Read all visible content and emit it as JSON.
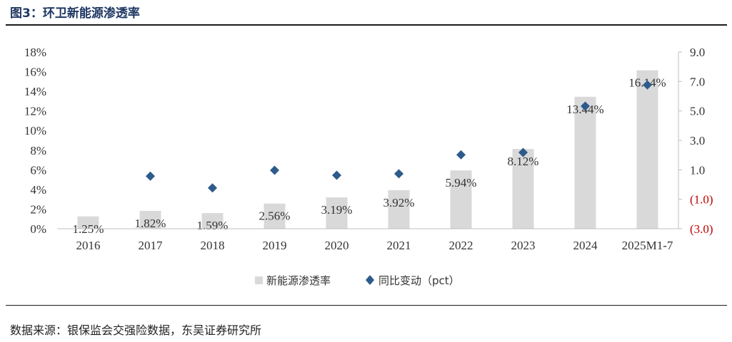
{
  "header": {
    "title": "图3：环卫新能源渗透率"
  },
  "footer": {
    "source": "数据来源：银保监会交强险数据，东吴证券研究所"
  },
  "colors": {
    "bar": "#d9d9d9",
    "marker": "#2e5a8c",
    "negative_tick": "#c00000",
    "title": "#1f3864"
  },
  "chart_data": {
    "type": "bar",
    "title": "环卫新能源渗透率",
    "categories": [
      "2016",
      "2017",
      "2018",
      "2019",
      "2020",
      "2021",
      "2022",
      "2023",
      "2024",
      "2025M1-7"
    ],
    "series": [
      {
        "name": "新能源渗透率",
        "type": "bar",
        "axis": "left",
        "values": [
          1.25,
          1.82,
          1.59,
          2.56,
          3.19,
          3.92,
          5.94,
          8.12,
          13.44,
          16.14
        ],
        "labels": [
          "1.25%",
          "1.82%",
          "1.59%",
          "2.56%",
          "3.19%",
          "3.92%",
          "5.94%",
          "8.12%",
          "13.44%",
          "16.14%"
        ]
      },
      {
        "name": "同比变动（pct）",
        "type": "scatter",
        "axis": "right",
        "values": [
          null,
          0.57,
          -0.23,
          0.97,
          0.63,
          0.73,
          2.02,
          2.18,
          5.32,
          6.76
        ]
      }
    ],
    "y_left": {
      "min": 0,
      "max": 18,
      "step": 2,
      "tick_labels": [
        "0%",
        "2%",
        "4%",
        "6%",
        "8%",
        "10%",
        "12%",
        "14%",
        "16%",
        "18%"
      ]
    },
    "y_right": {
      "min": -3,
      "max": 9,
      "ticks": [
        -3,
        -1,
        1,
        3,
        5,
        7,
        9
      ],
      "tick_labels": [
        "(3.0)",
        "(1.0)",
        "1.0",
        "3.0",
        "5.0",
        "7.0",
        "9.0"
      ]
    },
    "legend": {
      "position": "bottom",
      "items": [
        "新能源渗透率",
        "同比变动（pct）"
      ]
    },
    "grid": false
  }
}
